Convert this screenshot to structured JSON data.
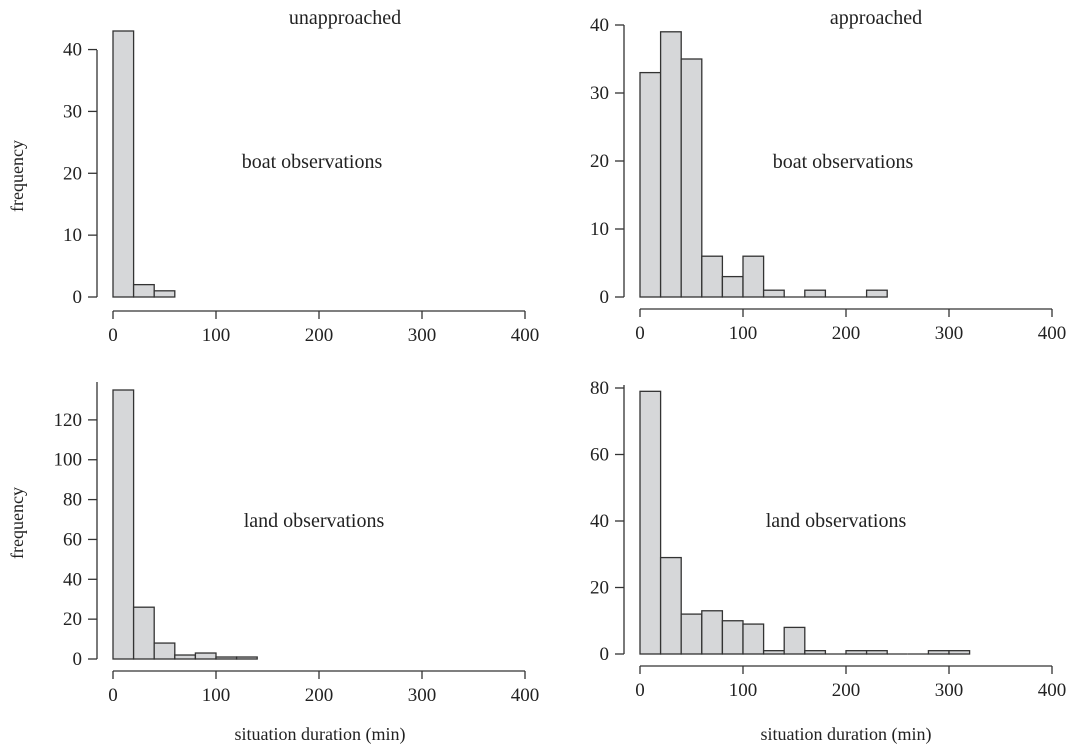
{
  "chart_data": [
    {
      "type": "bar",
      "title": "unapproached",
      "annotation": "boat observations",
      "xlabel": "",
      "ylabel": "frequency",
      "xlim": [
        0,
        400
      ],
      "ylim": [
        0,
        43
      ],
      "xticks": [
        0,
        100,
        200,
        300,
        400
      ],
      "yticks": [
        0,
        10,
        20,
        30,
        40
      ],
      "bin_edges": [
        0,
        20,
        40,
        60
      ],
      "values": [
        43,
        2,
        1
      ]
    },
    {
      "type": "bar",
      "title": "approached",
      "annotation": "boat observations",
      "xlabel": "",
      "ylabel": "",
      "xlim": [
        0,
        400
      ],
      "ylim": [
        0,
        40
      ],
      "xticks": [
        0,
        100,
        200,
        300,
        400
      ],
      "yticks": [
        0,
        10,
        20,
        30,
        40
      ],
      "bin_edges": [
        0,
        20,
        40,
        60,
        80,
        100,
        120,
        140,
        160,
        180,
        200,
        220,
        240
      ],
      "values": [
        33,
        39,
        35,
        6,
        3,
        6,
        1,
        0,
        1,
        0,
        0,
        1
      ]
    },
    {
      "type": "bar",
      "title": "",
      "annotation": "land observations",
      "xlabel": "situation duration (min)",
      "ylabel": "frequency",
      "xlim": [
        0,
        400
      ],
      "ylim": [
        0,
        135
      ],
      "xticks": [
        0,
        100,
        200,
        300,
        400
      ],
      "yticks": [
        0,
        20,
        40,
        60,
        80,
        100,
        120
      ],
      "bin_edges": [
        0,
        20,
        40,
        60,
        80,
        100,
        120,
        140
      ],
      "values": [
        135,
        26,
        8,
        2,
        3,
        1,
        1
      ]
    },
    {
      "type": "bar",
      "title": "",
      "annotation": "land observations",
      "xlabel": "situation duration (min)",
      "ylabel": "",
      "xlim": [
        0,
        400
      ],
      "ylim": [
        0,
        80
      ],
      "xticks": [
        0,
        100,
        200,
        300,
        400
      ],
      "yticks": [
        0,
        20,
        40,
        60,
        80
      ],
      "bin_edges": [
        0,
        20,
        40,
        60,
        80,
        100,
        120,
        140,
        160,
        180,
        200,
        220,
        240,
        260,
        280,
        300,
        320
      ],
      "values": [
        79,
        29,
        12,
        13,
        10,
        9,
        1,
        8,
        1,
        0,
        1,
        1,
        0,
        0,
        1,
        1
      ]
    }
  ],
  "colors": {
    "bar_fill": "#d6d7d9",
    "bar_stroke": "#333333",
    "text": "#222222"
  }
}
